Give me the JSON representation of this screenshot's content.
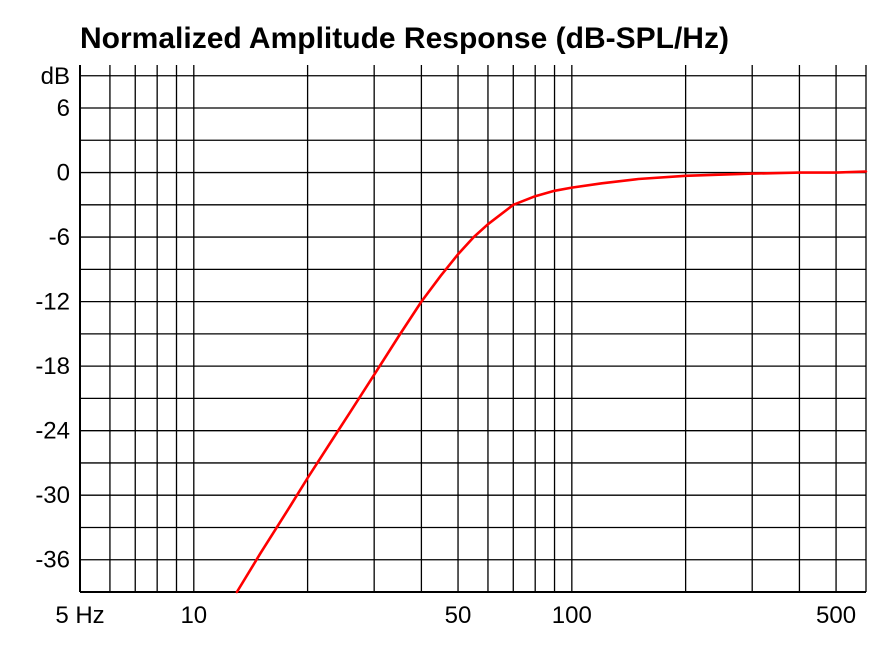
{
  "chart_data": {
    "type": "line",
    "title": "Normalized Amplitude Response (dB-SPL/Hz)",
    "xlabel": "",
    "ylabel": "dB",
    "x_scale": "log",
    "xlim": [
      5,
      600
    ],
    "ylim": [
      -39,
      10
    ],
    "x_tick_labels": [
      {
        "value": 5,
        "label": "5 Hz"
      },
      {
        "value": 10,
        "label": "10"
      },
      {
        "value": 50,
        "label": "50"
      },
      {
        "value": 100,
        "label": "100"
      },
      {
        "value": 500,
        "label": "500"
      }
    ],
    "x_gridlines": [
      5,
      6,
      7,
      8,
      9,
      10,
      20,
      30,
      40,
      50,
      60,
      70,
      80,
      90,
      100,
      200,
      300,
      400,
      500,
      600
    ],
    "y_ticks": [
      6,
      0,
      -6,
      -12,
      -18,
      -24,
      -30,
      -36
    ],
    "y_tick_labels": [
      "6",
      "0",
      "-6",
      "-12",
      "-18",
      "-24",
      "-30",
      "-36"
    ],
    "y_gridlines": [
      9,
      6,
      3,
      0,
      -3,
      -6,
      -9,
      -12,
      -15,
      -18,
      -21,
      -24,
      -27,
      -30,
      -33,
      -36,
      -39
    ],
    "grid": true,
    "series": [
      {
        "color": "#ff0000",
        "x": [
          13,
          15,
          18,
          20,
          23,
          26,
          30,
          35,
          40,
          45,
          50,
          55,
          60,
          70,
          80,
          90,
          100,
          120,
          150,
          200,
          300,
          400,
          500,
          600
        ],
        "y": [
          -39.0,
          -35.4,
          -31.0,
          -28.4,
          -25.1,
          -22.2,
          -18.8,
          -15.1,
          -12.0,
          -9.6,
          -7.6,
          -6.0,
          -4.8,
          -3.0,
          -2.2,
          -1.7,
          -1.4,
          -1.0,
          -0.6,
          -0.3,
          -0.1,
          0.0,
          0.0,
          0.1
        ]
      }
    ]
  }
}
